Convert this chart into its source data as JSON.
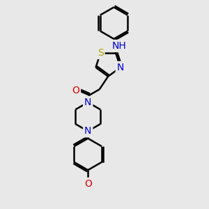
{
  "bg_color": "#e8e8e8",
  "bond_color": "#000000",
  "atom_colors": {
    "N": "#0000cc",
    "NH": "#0000cc",
    "O": "#dd0000",
    "S": "#aaaa00",
    "C": "#000000"
  },
  "lw": 1.8,
  "font_size": 10,
  "figsize": [
    3.0,
    3.0
  ],
  "dpi": 100,
  "xlim": [
    60,
    210
  ],
  "ylim": [
    10,
    300
  ]
}
